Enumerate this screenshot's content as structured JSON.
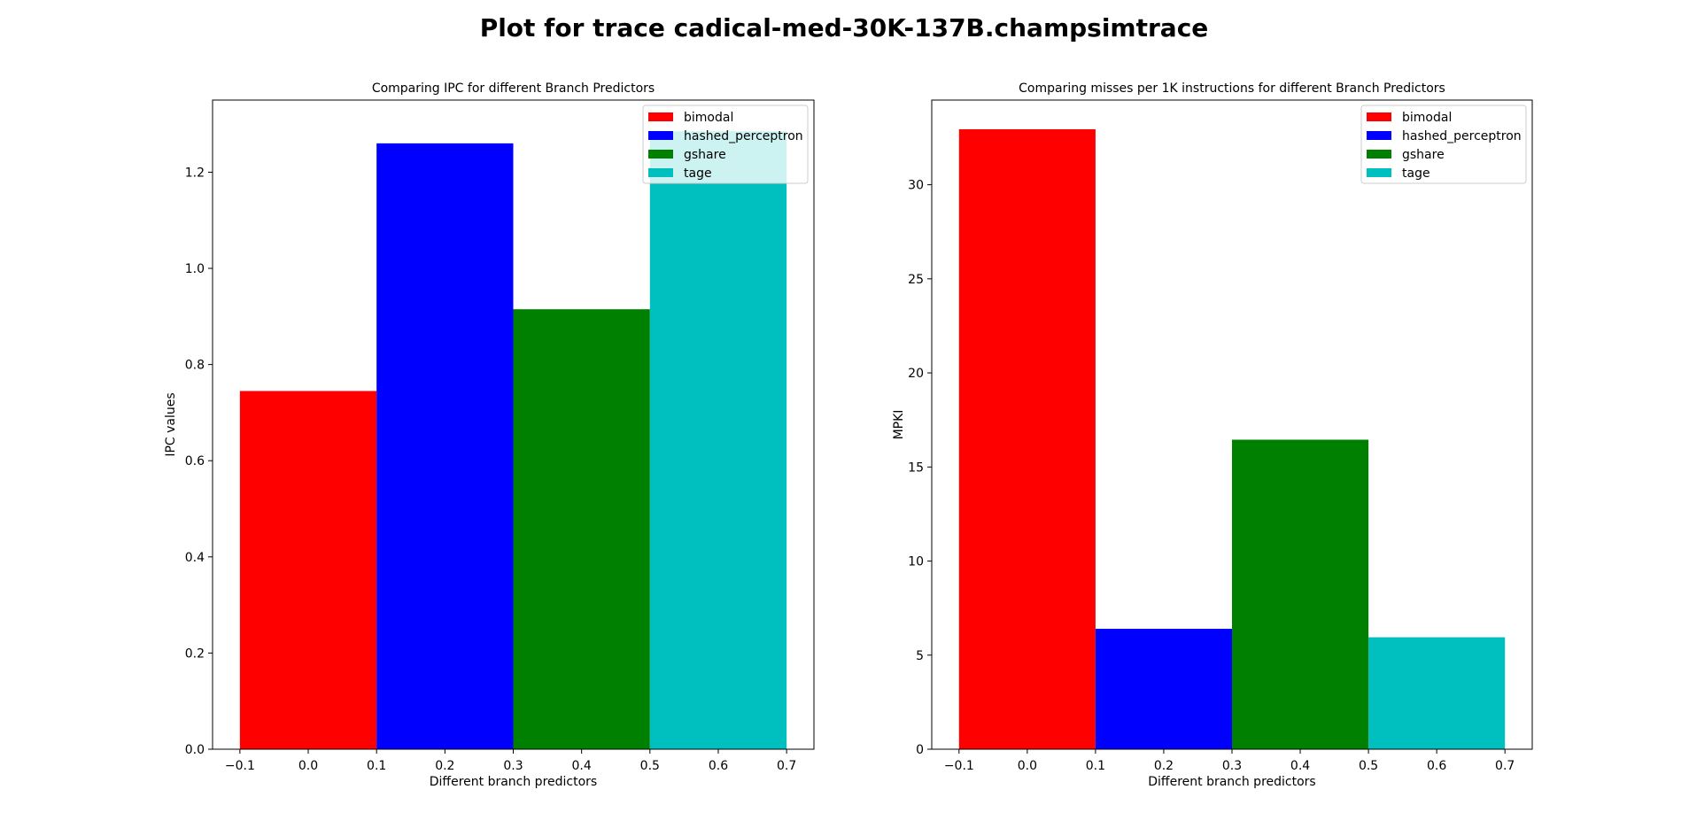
{
  "figure_title": "Plot for trace cadical-med-30K-137B.champsimtrace",
  "colors": {
    "bimodal": "#ff0000",
    "hashed_perceptron": "#0000ff",
    "gshare": "#008000",
    "tage": "#00bfbf"
  },
  "chart_data": [
    {
      "type": "bar",
      "title": "Comparing IPC for different Branch Predictors",
      "xlabel": "Different branch predictors",
      "ylabel": "IPC values",
      "xlim": [
        -0.14,
        0.74
      ],
      "ylim": [
        0,
        1.35
      ],
      "xticks": [
        -0.1,
        0.0,
        0.1,
        0.2,
        0.3,
        0.4,
        0.5,
        0.6,
        0.7
      ],
      "xtick_labels": [
        "−0.1",
        "0.0",
        "0.1",
        "0.2",
        "0.3",
        "0.4",
        "0.5",
        "0.6",
        "0.7"
      ],
      "yticks": [
        0,
        0.2,
        0.4,
        0.6,
        0.8,
        1.0,
        1.2
      ],
      "ytick_labels": [
        "0.0",
        "0.2",
        "0.4",
        "0.6",
        "0.8",
        "1.0",
        "1.2"
      ],
      "bar_width": 0.2,
      "grid": false,
      "legend_position": "top-right",
      "series": [
        {
          "name": "bimodal",
          "x": 0.0,
          "value": 0.745
        },
        {
          "name": "hashed_perceptron",
          "x": 0.2,
          "value": 1.26
        },
        {
          "name": "gshare",
          "x": 0.4,
          "value": 0.915
        },
        {
          "name": "tage",
          "x": 0.6,
          "value": 1.285
        }
      ]
    },
    {
      "type": "bar",
      "title": "Comparing misses per 1K instructions for different Branch Predictors",
      "xlabel": "Different branch predictors",
      "ylabel": "MPKI",
      "xlim": [
        -0.14,
        0.74
      ],
      "ylim": [
        0,
        34.5
      ],
      "xticks": [
        -0.1,
        0.0,
        0.1,
        0.2,
        0.3,
        0.4,
        0.5,
        0.6,
        0.7
      ],
      "xtick_labels": [
        "−0.1",
        "0.0",
        "0.1",
        "0.2",
        "0.3",
        "0.4",
        "0.5",
        "0.6",
        "0.7"
      ],
      "yticks": [
        0,
        5,
        10,
        15,
        20,
        25,
        30
      ],
      "ytick_labels": [
        "0",
        "5",
        "10",
        "15",
        "20",
        "25",
        "30"
      ],
      "bar_width": 0.2,
      "grid": false,
      "legend_position": "top-right",
      "series": [
        {
          "name": "bimodal",
          "x": 0.0,
          "value": 32.95
        },
        {
          "name": "hashed_perceptron",
          "x": 0.2,
          "value": 6.4
        },
        {
          "name": "gshare",
          "x": 0.4,
          "value": 16.45
        },
        {
          "name": "tage",
          "x": 0.6,
          "value": 5.95
        }
      ]
    }
  ]
}
